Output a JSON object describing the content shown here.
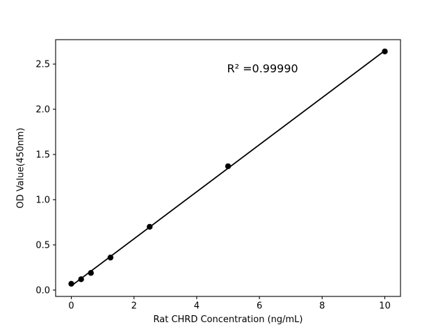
{
  "chart_data": {
    "type": "scatter",
    "title": "",
    "xlabel": "Rat CHRD Concentration (ng/mL)",
    "ylabel": "OD Value(450nm)",
    "x": [
      0,
      0.3125,
      0.625,
      1.25,
      2.5,
      5,
      10
    ],
    "y": [
      0.07,
      0.12,
      0.19,
      0.36,
      0.7,
      1.37,
      2.64
    ],
    "fit_line": {
      "type": "linear-regression",
      "from_first_to_last_point": true
    },
    "annotation": {
      "text": "R² =0.99990",
      "r_squared": 0.9999,
      "x": 6.1,
      "y": 2.45
    },
    "x_ticks": [
      0,
      2,
      4,
      6,
      8,
      10
    ],
    "x_tick_labels": [
      "0",
      "2",
      "4",
      "6",
      "8",
      "10"
    ],
    "y_ticks": [
      0.0,
      0.5,
      1.0,
      1.5,
      2.0,
      2.5
    ],
    "y_tick_labels": [
      "0.0",
      "0.5",
      "1.0",
      "1.5",
      "2.0",
      "2.5"
    ],
    "xlim": [
      -0.5,
      10.5
    ],
    "ylim": [
      -0.07,
      2.77
    ],
    "grid": false,
    "legend": "none",
    "marker_color": "#000000",
    "line_color": "#000000",
    "frame_color": "#000000",
    "background_color": "#ffffff"
  }
}
